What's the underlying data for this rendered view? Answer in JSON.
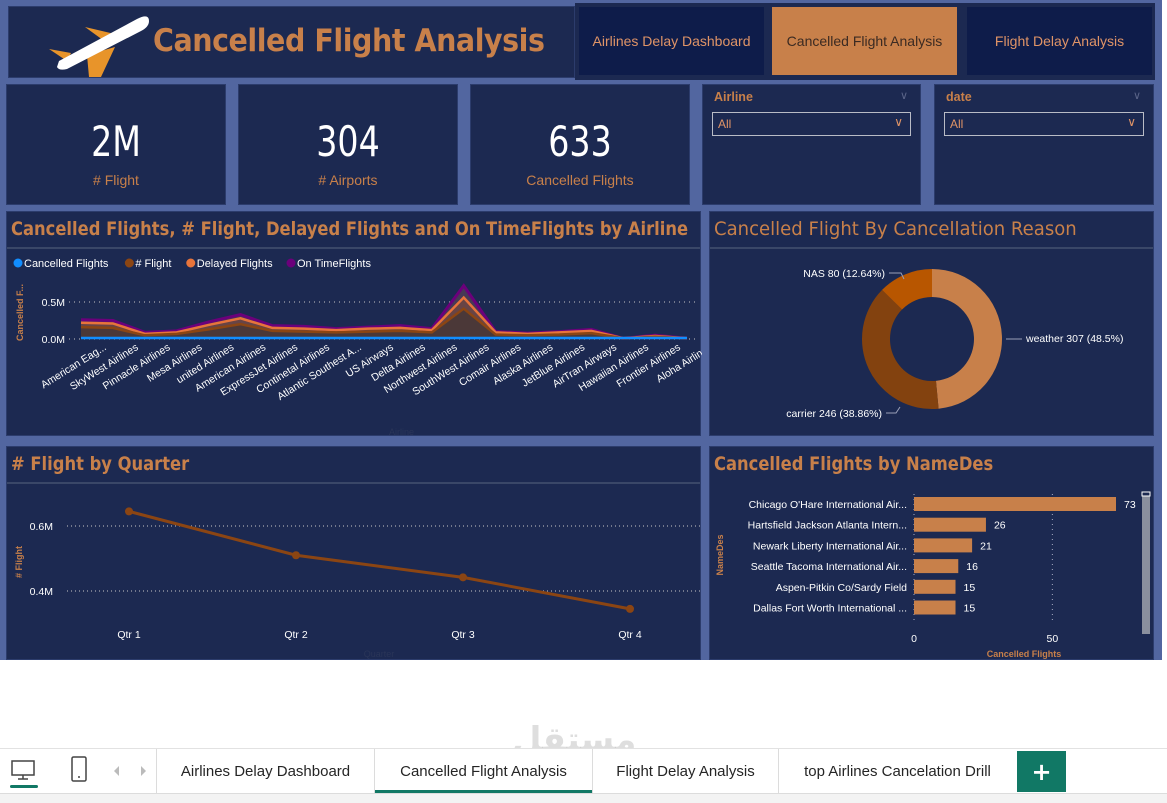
{
  "header": {
    "title": "Cancelled Flight Analysis",
    "logo_icon": "airplane-icon"
  },
  "nav_buttons": [
    {
      "label": "Airlines Delay Dashboard",
      "active": false
    },
    {
      "label": "Cancelled Flight Analysis",
      "active": true
    },
    {
      "label": "Flight Delay Analysis",
      "active": false
    }
  ],
  "kpis": [
    {
      "value": "2M",
      "label": "# Flight"
    },
    {
      "value": "304",
      "label": "# Airports"
    },
    {
      "value": "633",
      "label": "Cancelled Flights"
    }
  ],
  "slicers": [
    {
      "title": "Airline",
      "value": "All"
    },
    {
      "title": "date",
      "value": "All"
    }
  ],
  "colors": {
    "accent": "#c8804a",
    "panel_bg": "#1c2951",
    "canvas_bg": "#5266a0",
    "nav_bg": "#0e1c4a",
    "tab_active": "#117865"
  },
  "chart_data": [
    {
      "type": "area",
      "title": "Cancelled Flights, # Flight, Delayed Flights and On TimeFlights by Airline",
      "xlabel": "Airline",
      "ylabel": "Cancelled F...",
      "yticks": [
        "0.0M",
        "0.5M"
      ],
      "ylim": [
        0,
        0.75
      ],
      "legend_position": "top-left",
      "categories": [
        "American Eag...",
        "SkyWest Airlines",
        "Pinnacle Airlines",
        "Mesa Airlines",
        "united Airlines",
        "American Airlines",
        "ExpressJet Airlines",
        "Continetal Airlines",
        "Atlantic Southest A...",
        "US Airways",
        "Delta Airlines",
        "Northwest Airlines",
        "SouthWest Airlines",
        "Comair Airlines",
        "Alaska Airlines",
        "JetBlue Airlines",
        "AirTran Airways",
        "Hawaiian Airlines",
        "Frontier Airlines",
        "Aloha Airlines"
      ],
      "series": [
        {
          "name": "Cancelled Flights",
          "color": "#118dff",
          "values": [
            0.0003,
            0.0003,
            0.0001,
            0.0001,
            0.0002,
            0.0003,
            0.0002,
            0.0002,
            0.0001,
            0.0001,
            0.0001,
            0.0001,
            0.0004,
            0.0001,
            0.0001,
            0.0001,
            0.0001,
            0.0,
            0.0,
            0.0
          ]
        },
        {
          "name": "# Flight",
          "color": "#8b4513",
          "values": [
            0.16,
            0.15,
            0.05,
            0.07,
            0.13,
            0.2,
            0.11,
            0.1,
            0.09,
            0.1,
            0.11,
            0.09,
            0.41,
            0.06,
            0.05,
            0.06,
            0.08,
            0.01,
            0.03,
            0.01
          ]
        },
        {
          "name": "Delayed Flights",
          "color": "#e8743b",
          "values": [
            0.22,
            0.21,
            0.07,
            0.09,
            0.19,
            0.28,
            0.15,
            0.14,
            0.12,
            0.14,
            0.15,
            0.12,
            0.56,
            0.09,
            0.07,
            0.09,
            0.11,
            0.01,
            0.04,
            0.01
          ]
        },
        {
          "name": "On TimeFlights",
          "color": "#6b007b",
          "values": [
            0.26,
            0.25,
            0.09,
            0.11,
            0.23,
            0.33,
            0.18,
            0.17,
            0.14,
            0.16,
            0.18,
            0.14,
            0.72,
            0.1,
            0.08,
            0.1,
            0.13,
            0.01,
            0.05,
            0.01
          ]
        }
      ]
    },
    {
      "type": "pie",
      "title": "Cancelled Flight By Cancellation Reason",
      "donut": true,
      "slices": [
        {
          "label": "weather",
          "value": 307,
          "percent": "48.5%",
          "color": "#c8804a",
          "text": "weather 307 (48.5%)"
        },
        {
          "label": "carrier",
          "value": 246,
          "percent": "38.86%",
          "color": "#83420f",
          "text": "carrier 246 (38.86%)"
        },
        {
          "label": "NAS",
          "value": 80,
          "percent": "12.64%",
          "color": "#b85600",
          "text": "NAS 80 (12.64%)"
        }
      ]
    },
    {
      "type": "line",
      "title": "# Flight by Quarter",
      "xlabel": "Quarter",
      "ylabel": "# Flight",
      "categories": [
        "Qtr 1",
        "Qtr 2",
        "Qtr 3",
        "Qtr 4"
      ],
      "values": [
        0.645,
        0.51,
        0.442,
        0.345
      ],
      "yticks": [
        {
          "v": 0.4,
          "label": "0.4M"
        },
        {
          "v": 0.6,
          "label": "0.6M"
        }
      ],
      "ylim": [
        0.3,
        0.7
      ],
      "color": "#8b4513"
    },
    {
      "type": "bar",
      "orientation": "horizontal",
      "title": "Cancelled Flights by NameDes",
      "xlabel": "Cancelled Flights",
      "ylabel": "NameDes",
      "categories": [
        "Chicago O'Hare International Air...",
        "Hartsfield Jackson Atlanta Intern...",
        "Newark Liberty International Air...",
        "Seattle Tacoma International Air...",
        "Aspen-Pitkin Co/Sardy Field",
        "Dallas Fort Worth International ..."
      ],
      "values": [
        73,
        26,
        21,
        16,
        15,
        15
      ],
      "xticks": [
        0,
        50
      ],
      "xlim": [
        0,
        80
      ],
      "color": "#c8804a"
    }
  ],
  "bottom_bar": {
    "view_icons": [
      "desktop-icon",
      "phone-icon",
      "prev-arrow-icon",
      "next-arrow-icon"
    ],
    "tabs": [
      {
        "label": "Airlines Delay Dashboard",
        "active": false
      },
      {
        "label": "Cancelled Flight Analysis",
        "active": true
      },
      {
        "label": "Flight Delay Analysis",
        "active": false
      },
      {
        "label": "top Airlines Cancelation Drill",
        "active": false
      }
    ],
    "add_label": "+"
  },
  "watermark": {
    "arabic": "مستقل",
    "latin": "mostaql.com"
  }
}
